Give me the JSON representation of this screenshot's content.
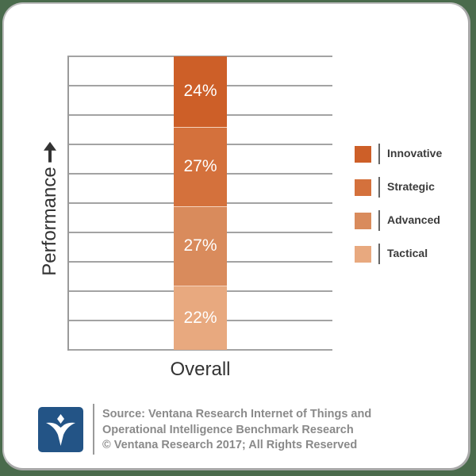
{
  "chart_data": {
    "type": "bar",
    "stacked": true,
    "title": "",
    "categories": [
      "Overall"
    ],
    "series": [
      {
        "name": "Tactical",
        "values": [
          22
        ],
        "color": "#e8a97f"
      },
      {
        "name": "Advanced",
        "values": [
          27
        ],
        "color": "#d98b5c"
      },
      {
        "name": "Strategic",
        "values": [
          27
        ],
        "color": "#d4713c"
      },
      {
        "name": "Innovative",
        "values": [
          24
        ],
        "color": "#cd5f28"
      }
    ],
    "xlabel": "Overall",
    "ylabel": "Performance",
    "ylim": [
      0,
      100
    ],
    "grid": true,
    "gridlines": 10,
    "legend_position": "right",
    "data_label_format": "percent"
  },
  "chart": {
    "ylabel": "Performance",
    "xlabel": "Overall",
    "segments_top_to_bottom": [
      {
        "name": "Innovative",
        "value": 24,
        "label": "24%",
        "color": "#cd5f28"
      },
      {
        "name": "Strategic",
        "value": 27,
        "label": "27%",
        "color": "#d4713c"
      },
      {
        "name": "Advanced",
        "value": 27,
        "label": "27%",
        "color": "#d98b5c"
      },
      {
        "name": "Tactical",
        "value": 22,
        "label": "22%",
        "color": "#e8a97f"
      }
    ]
  },
  "legend": {
    "items": [
      {
        "label": "Innovative",
        "color": "#cd5f28"
      },
      {
        "label": "Strategic",
        "color": "#d4713c"
      },
      {
        "label": "Advanced",
        "color": "#d98b5c"
      },
      {
        "label": "Tactical",
        "color": "#e8a97f"
      }
    ]
  },
  "footer": {
    "logo_icon": "ventana-v-logo-icon",
    "line1": "Source: Ventana Research Internet of Things and",
    "line2": "Operational Intelligence Benchmark Research",
    "line3": "© Ventana Research 2017; All Rights Reserved"
  },
  "colors": {
    "logo_bg": "#235486",
    "background": "#4a6b4c"
  }
}
